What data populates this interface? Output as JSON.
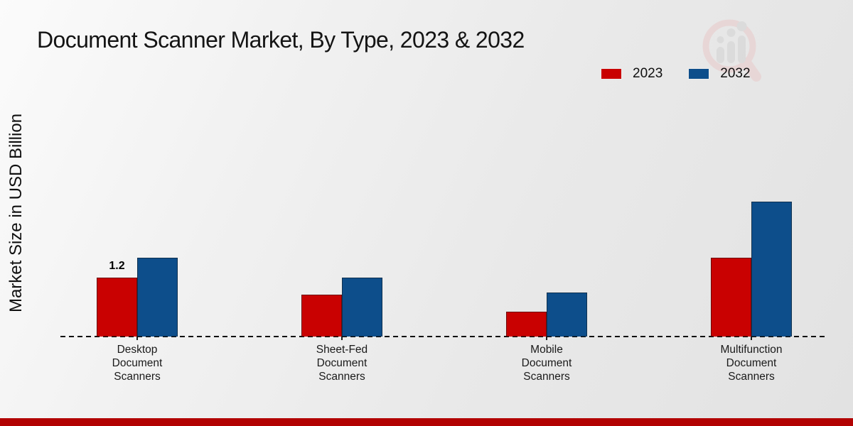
{
  "page": {
    "background": "#e9e9e9",
    "footer_bar_color": "#b20202"
  },
  "watermark": {
    "description": "magnifying-glass-with-bar-chart-logo",
    "lens_color": "#e8c9c9",
    "bars_color": "#d2d2d2"
  },
  "chart_data": {
    "type": "bar",
    "title": "Document Scanner Market, By Type, 2023 & 2032",
    "xlabel": "",
    "ylabel": "Market Size in USD Billion",
    "categories": [
      "Desktop Document Scanners",
      "Sheet-Fed Document Scanners",
      "Mobile Document Scanners",
      "Multifunction Document Scanners"
    ],
    "series": [
      {
        "name": "2023",
        "color": "#c90101",
        "values": [
          1.2,
          0.85,
          0.5,
          1.6
        ]
      },
      {
        "name": "2032",
        "color": "#0d4e8b",
        "values": [
          1.6,
          1.2,
          0.9,
          2.75
        ]
      }
    ],
    "data_labels": [
      {
        "series": "2023",
        "category": "Desktop Document Scanners",
        "text": "1.2"
      }
    ],
    "ylim": [
      0,
      3
    ],
    "y_axis_ticks_visible": false,
    "grid": false,
    "legend_position": "top-right",
    "baseline_style": "dashed"
  }
}
